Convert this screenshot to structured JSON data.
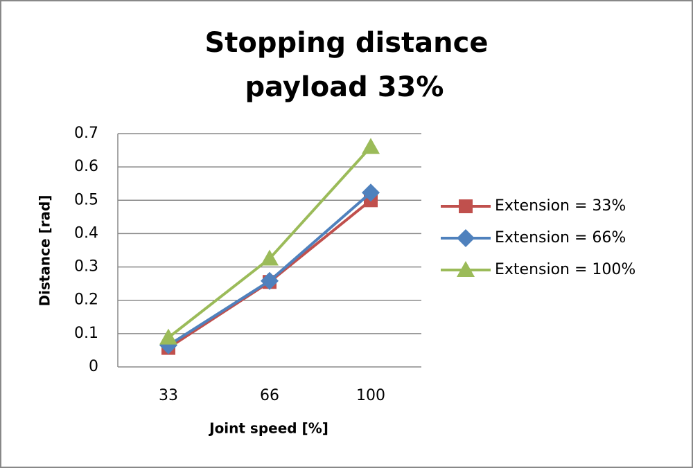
{
  "chart_data": {
    "type": "line",
    "title": "Stopping distance",
    "subtitle": "payload 33%",
    "x_label": "Joint speed [%]",
    "y_label": "Distance [rad]",
    "categories": [
      "33",
      "66",
      "100"
    ],
    "series": [
      {
        "name": "Extension = 33%",
        "color": "#c0504d",
        "marker": "square",
        "values": [
          0.057,
          0.255,
          0.5
        ]
      },
      {
        "name": "Extension = 66%",
        "color": "#4f81bd",
        "marker": "diamond",
        "values": [
          0.065,
          0.258,
          0.523
        ]
      },
      {
        "name": "Extension = 100%",
        "color": "#9bbb59",
        "marker": "triangle",
        "values": [
          0.088,
          0.325,
          0.66
        ]
      }
    ],
    "ylim": [
      0,
      0.7
    ],
    "yticks": [
      0,
      0.1,
      0.2,
      0.3,
      0.4,
      0.5,
      0.6,
      0.7
    ],
    "grid": true,
    "legend": "right"
  }
}
